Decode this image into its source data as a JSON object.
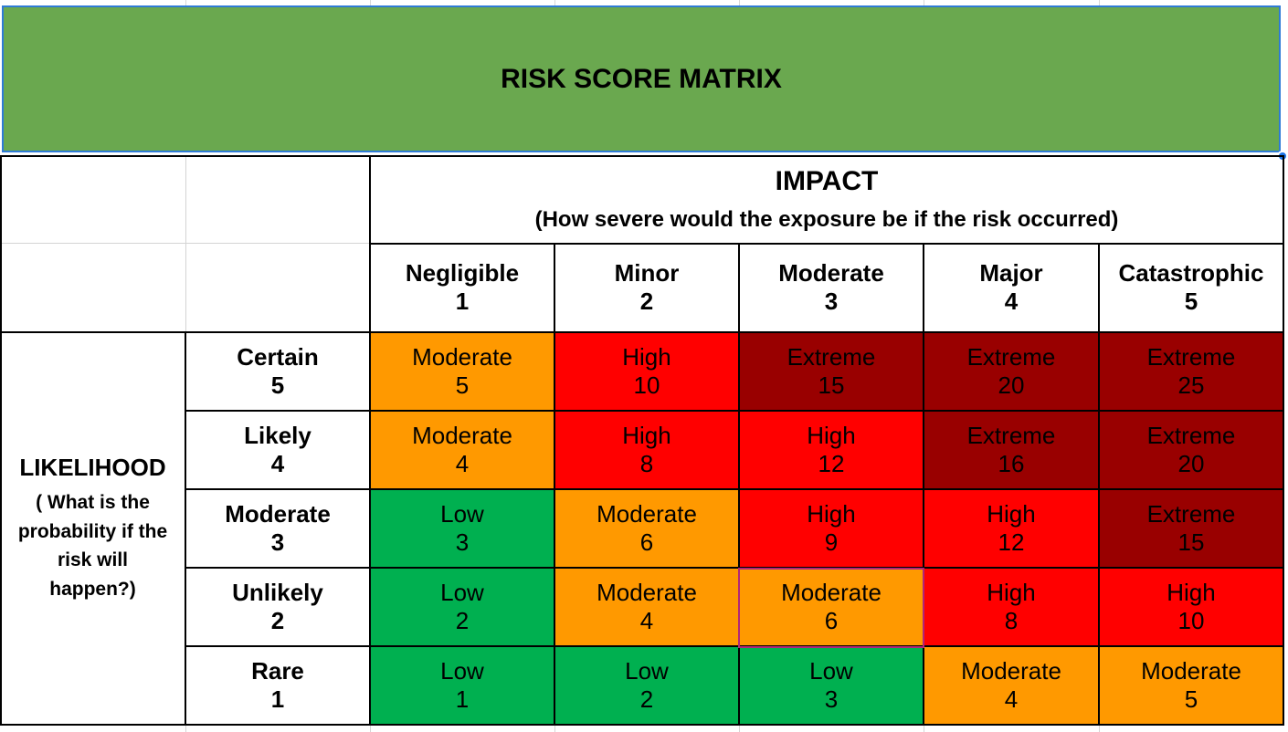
{
  "title": "RISK SCORE MATRIX",
  "impact": {
    "heading": "IMPACT",
    "subheading": "(How severe would the exposure be if the risk occurred)",
    "columns": [
      {
        "label": "Negligible",
        "score": "1"
      },
      {
        "label": "Minor",
        "score": "2"
      },
      {
        "label": "Moderate",
        "score": "3"
      },
      {
        "label": "Major",
        "score": "4"
      },
      {
        "label": "Catastrophic",
        "score": "5"
      }
    ]
  },
  "likelihood": {
    "heading": "LIKELIHOOD",
    "subheading": "( What is the probability  if the risk will happen?)",
    "rows": [
      {
        "label": "Certain",
        "score": "5"
      },
      {
        "label": "Likely",
        "score": "4"
      },
      {
        "label": "Moderate",
        "score": "3"
      },
      {
        "label": "Unlikely",
        "score": "2"
      },
      {
        "label": "Rare",
        "score": "1"
      }
    ]
  },
  "colors": {
    "title_bg": "#6aa84f",
    "Low": "#00b050",
    "Moderate": "#ff9900",
    "High": "#ff0000",
    "Extreme": "#990000"
  },
  "matrix": [
    [
      {
        "level": "Moderate",
        "score": "5"
      },
      {
        "level": "High",
        "score": "10"
      },
      {
        "level": "Extreme",
        "score": "15"
      },
      {
        "level": "Extreme",
        "score": "20"
      },
      {
        "level": "Extreme",
        "score": "25"
      }
    ],
    [
      {
        "level": "Moderate",
        "score": "4"
      },
      {
        "level": "High",
        "score": "8"
      },
      {
        "level": "High",
        "score": "12"
      },
      {
        "level": "Extreme",
        "score": "16"
      },
      {
        "level": "Extreme",
        "score": "20"
      }
    ],
    [
      {
        "level": "Low",
        "score": "3"
      },
      {
        "level": "Moderate",
        "score": "6"
      },
      {
        "level": "High",
        "score": "9"
      },
      {
        "level": "High",
        "score": "12"
      },
      {
        "level": "Extreme",
        "score": "15"
      }
    ],
    [
      {
        "level": "Low",
        "score": "2"
      },
      {
        "level": "Moderate",
        "score": "4"
      },
      {
        "level": "Moderate",
        "score": "6"
      },
      {
        "level": "High",
        "score": "8"
      },
      {
        "level": "High",
        "score": "10"
      }
    ],
    [
      {
        "level": "Low",
        "score": "1"
      },
      {
        "level": "Low",
        "score": "2"
      },
      {
        "level": "Low",
        "score": "3"
      },
      {
        "level": "Moderate",
        "score": "4"
      },
      {
        "level": "Moderate",
        "score": "5"
      }
    ]
  ]
}
